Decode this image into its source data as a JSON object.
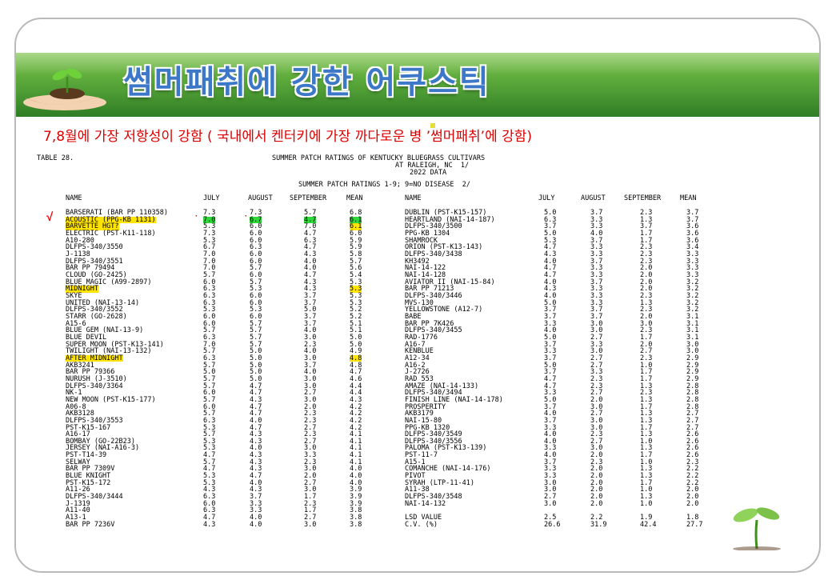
{
  "slide": {
    "title": "썸머패취에 강한 어쿠스틱",
    "subtitle_before": "7,8월에 가장 저항성이 강함 ( 국내에서 켄터키에 가장 까다로운 병 ’",
    "subtitle_after": "썸머패취’에 강함)",
    "check_mark": "√",
    "dot": "·"
  },
  "report": {
    "table_label": "TABLE 28.",
    "heading_line1": "SUMMER PATCH RATINGS OF KENTUCKY BLUEGRASS CULTIVARS",
    "heading_line2": "AT RALEIGH, NC  1/",
    "heading_line3": "2022 DATA",
    "scale_line": "SUMMER PATCH RATINGS 1-9; 9=NO DISEASE  2/",
    "columns": [
      "NAME",
      "JULY",
      "AUGUST",
      "SEPTEMBER",
      "MEAN"
    ]
  },
  "left_rows": [
    [
      "BARSERATI (BAR PP 110358)",
      "7.3",
      "7.3",
      "5.7",
      "6.8"
    ],
    [
      "ACOUSTIC (PPG-KB 1131)",
      "7.0",
      "6.7",
      "4.7",
      "6.1"
    ],
    [
      "BARVETTE HGT?",
      "5.3",
      "6.0",
      "7.0",
      "6.1"
    ],
    [
      "ELECTRIC (PST-K11-118)",
      "7.3",
      "6.0",
      "4.7",
      "6.0"
    ],
    [
      "A10-280",
      "5.3",
      "6.0",
      "6.3",
      "5.9"
    ],
    [
      "DLFPS-340/3550",
      "6.7",
      "6.3",
      "4.7",
      "5.9"
    ],
    [
      "J-1138",
      "7.0",
      "6.0",
      "4.3",
      "5.8"
    ],
    [
      "DLFPS-340/3551",
      "7.0",
      "6.0",
      "4.0",
      "5.7"
    ],
    [
      "BAR PP 79494",
      "7.0",
      "5.7",
      "4.0",
      "5.6"
    ],
    [
      "CLOUD (GO-2425)",
      "5.7",
      "6.0",
      "4.7",
      "5.4"
    ],
    [
      "BLUE MAGIC (A99-2897)",
      "6.0",
      "5.7",
      "4.3",
      "5.3"
    ],
    [
      "MIDNIGHT",
      "6.3",
      "5.3",
      "4.3",
      "5.3"
    ],
    [
      "SKYE",
      "6.3",
      "6.0",
      "3.7",
      "5.3"
    ],
    [
      "UNITED (NAI-13-14)",
      "6.3",
      "6.0",
      "3.7",
      "5.3"
    ],
    [
      "DLFPS-340/3552",
      "5.3",
      "5.3",
      "5.0",
      "5.2"
    ],
    [
      "STARR (GO-2628)",
      "6.0",
      "6.0",
      "3.7",
      "5.2"
    ],
    [
      "A15-6",
      "6.0",
      "5.7",
      "3.7",
      "5.1"
    ],
    [
      "BLUE GEM (NAI-13-9)",
      "5.7",
      "5.7",
      "4.0",
      "5.1"
    ],
    [
      "BLUE DEVIL",
      "6.3",
      "5.7",
      "3.0",
      "5.0"
    ],
    [
      "SUPER MOON (PST-K13-141)",
      "7.0",
      "5.7",
      "2.3",
      "5.0"
    ],
    [
      "TWILIGHT (NAI-13-132)",
      "5.7",
      "5.0",
      "4.0",
      "4.9"
    ],
    [
      "AFTER MIDNIGHT",
      "6.3",
      "5.0",
      "3.0",
      "4.8"
    ],
    [
      "AKB3241",
      "5.7",
      "5.0",
      "3.7",
      "4.8"
    ],
    [
      "BAR PP 79366",
      "5.0",
      "5.0",
      "4.0",
      "4.7"
    ],
    [
      "NURUSH (J-3510)",
      "5.7",
      "5.0",
      "3.0",
      "4.6"
    ],
    [
      "DLFPS-340/3364",
      "5.7",
      "4.7",
      "3.0",
      "4.4"
    ],
    [
      "NK-1",
      "6.0",
      "4.7",
      "2.7",
      "4.4"
    ],
    [
      "NEW MOON (PST-K15-177)",
      "5.7",
      "4.3",
      "3.0",
      "4.3"
    ],
    [
      "A06-8",
      "6.0",
      "4.7",
      "2.0",
      "4.2"
    ],
    [
      "AKB3128",
      "5.7",
      "4.7",
      "2.3",
      "4.2"
    ],
    [
      "DLFPS-340/3553",
      "6.3",
      "4.0",
      "2.3",
      "4.2"
    ],
    [
      "PST-K15-167",
      "5.3",
      "4.7",
      "2.7",
      "4.2"
    ],
    [
      "A16-17",
      "5.7",
      "4.3",
      "2.3",
      "4.1"
    ],
    [
      "BOMBAY (GO-22B23)",
      "5.3",
      "4.3",
      "2.7",
      "4.1"
    ],
    [
      "JERSEY (NAI-A16-3)",
      "5.3",
      "4.0",
      "3.0",
      "4.1"
    ],
    [
      "PST-T14-39",
      "4.7",
      "4.3",
      "3.3",
      "4.1"
    ],
    [
      "SELWAY",
      "5.7",
      "4.3",
      "2.3",
      "4.1"
    ],
    [
      "BAR PP 7309V",
      "4.7",
      "4.3",
      "3.0",
      "4.0"
    ],
    [
      "BLUE KNIGHT",
      "5.3",
      "4.7",
      "2.0",
      "4.0"
    ],
    [
      "PST-K15-172",
      "5.3",
      "4.0",
      "2.7",
      "4.0"
    ],
    [
      "A11-26",
      "4.3",
      "4.3",
      "3.0",
      "3.9"
    ],
    [
      "DLFPS-340/3444",
      "6.3",
      "3.7",
      "1.7",
      "3.9"
    ],
    [
      "J-1319",
      "6.0",
      "3.3",
      "2.3",
      "3.9"
    ],
    [
      "A11-40",
      "6.3",
      "3.3",
      "1.7",
      "3.8"
    ],
    [
      "A13-1",
      "4.7",
      "4.0",
      "2.7",
      "3.8"
    ],
    [
      "BAR PP 7236V",
      "4.3",
      "4.0",
      "3.0",
      "3.8"
    ]
  ],
  "right_rows": [
    [
      "DUBLIN (PST-K15-157)",
      "5.0",
      "3.7",
      "2.3",
      "3.7"
    ],
    [
      "HEARTLAND (NAI-14-187)",
      "6.3",
      "3.3",
      "1.3",
      "3.7"
    ],
    [
      "DLFPS-340/3500",
      "3.7",
      "3.3",
      "3.7",
      "3.6"
    ],
    [
      "PPG-KB 1304",
      "5.0",
      "4.0",
      "1.7",
      "3.6"
    ],
    [
      "SHAMROCK",
      "5.3",
      "3.7",
      "1.7",
      "3.6"
    ],
    [
      "ORION (PST-K13-143)",
      "4.7",
      "3.3",
      "2.3",
      "3.4"
    ],
    [
      "DLFPS-340/3438",
      "4.3",
      "3.3",
      "2.3",
      "3.3"
    ],
    [
      "KH3492",
      "4.0",
      "3.7",
      "2.3",
      "3.3"
    ],
    [
      "NAI-14-122",
      "4.7",
      "3.3",
      "2.0",
      "3.3"
    ],
    [
      "NAI-14-128",
      "4.7",
      "3.3",
      "2.0",
      "3.3"
    ],
    [
      "AVIATOR II (NAI-15-84)",
      "4.0",
      "3.7",
      "2.0",
      "3.2"
    ],
    [
      "BAR PP 71213",
      "4.3",
      "3.3",
      "2.0",
      "3.2"
    ],
    [
      "DLFPS-340/3446",
      "4.0",
      "3.3",
      "2.3",
      "3.2"
    ],
    [
      "MVS-130",
      "5.0",
      "3.3",
      "1.3",
      "3.2"
    ],
    [
      "YELLOWSTONE (A12-7)",
      "3.7",
      "3.7",
      "2.3",
      "3.2"
    ],
    [
      "BABE",
      "3.7",
      "3.7",
      "2.0",
      "3.1"
    ],
    [
      "BAR PP 7K426",
      "3.3",
      "3.0",
      "3.0",
      "3.1"
    ],
    [
      "DLFPS-340/3455",
      "4.0",
      "3.0",
      "2.3",
      "3.1"
    ],
    [
      "RAD-1776",
      "5.0",
      "2.7",
      "1.7",
      "3.1"
    ],
    [
      "A16-7",
      "3.7",
      "3.3",
      "2.0",
      "3.0"
    ],
    [
      "KENBLUE",
      "3.3",
      "3.0",
      "2.7",
      "3.0"
    ],
    [
      "A12-34",
      "3.7",
      "2.7",
      "2.3",
      "2.9"
    ],
    [
      "A16-2",
      "5.0",
      "2.7",
      "1.0",
      "2.9"
    ],
    [
      "J-2726",
      "3.7",
      "3.3",
      "1.7",
      "2.9"
    ],
    [
      "RAD 553",
      "4.7",
      "2.3",
      "1.7",
      "2.9"
    ],
    [
      "AMAZE (NAI-14-133)",
      "4.7",
      "2.3",
      "1.3",
      "2.8"
    ],
    [
      "DLFPS-340/3494",
      "3.3",
      "2.7",
      "2.3",
      "2.8"
    ],
    [
      "FINISH LINE (NAI-14-178)",
      "5.0",
      "2.0",
      "1.3",
      "2.8"
    ],
    [
      "PROSPERITY",
      "3.7",
      "3.0",
      "1.7",
      "2.8"
    ],
    [
      "AKB3179",
      "4.0",
      "2.7",
      "1.3",
      "2.7"
    ],
    [
      "NAI-15-80",
      "3.7",
      "3.0",
      "1.3",
      "2.7"
    ],
    [
      "PPG-KB 1320",
      "3.3",
      "3.0",
      "1.7",
      "2.7"
    ],
    [
      "DLFPS-340/3549",
      "4.0",
      "2.3",
      "1.3",
      "2.6"
    ],
    [
      "DLFPS-340/3556",
      "4.0",
      "2.7",
      "1.0",
      "2.6"
    ],
    [
      "PALOMA (PST-K13-139)",
      "3.3",
      "3.0",
      "1.3",
      "2.6"
    ],
    [
      "PST-11-7",
      "4.0",
      "2.0",
      "1.7",
      "2.6"
    ],
    [
      "A15-1",
      "3.7",
      "2.3",
      "1.0",
      "2.3"
    ],
    [
      "COMANCHE (NAI-14-176)",
      "3.3",
      "2.0",
      "1.3",
      "2.2"
    ],
    [
      "PIVOT",
      "3.3",
      "2.0",
      "1.3",
      "2.2"
    ],
    [
      "SYRAH (LTP-11-41)",
      "3.0",
      "2.0",
      "1.7",
      "2.2"
    ],
    [
      "A11-38",
      "3.0",
      "2.0",
      "1.0",
      "2.0"
    ],
    [
      "DLFPS-340/3548",
      "2.7",
      "2.0",
      "1.3",
      "2.0"
    ],
    [
      "NAI-14-132",
      "3.0",
      "2.0",
      "1.0",
      "2.0"
    ],
    [
      "",
      ""
    ],
    [
      "LSD VALUE",
      "2.5",
      "2.2",
      "1.9",
      "1.8"
    ],
    [
      "C.V. (%)",
      "26.6",
      "31.9",
      "42.4",
      "27.7"
    ]
  ],
  "colors": {
    "banner_top": "#7cc24a",
    "banner_bottom": "#2f7d25",
    "title_blue": "#3d78c8",
    "subtitle_red": "#dd0000",
    "highlight_yellow": "#ffe400",
    "highlight_green": "#2fd83a"
  },
  "icons": [
    "hands-with-sprout-icon",
    "sprout-icon"
  ]
}
